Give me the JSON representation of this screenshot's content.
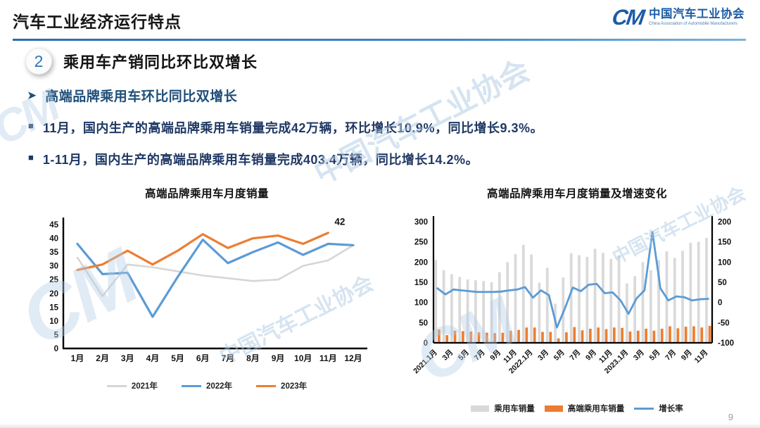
{
  "header": {
    "title": "汽车工业经济运行特点",
    "logo": {
      "mark": "CM",
      "org_cn": "中国汽车工业协会",
      "org_en": "China Association of Automobile Manufacturers"
    }
  },
  "section": {
    "number": "2",
    "title": "乘用车产销同比环比双增长"
  },
  "subtitle": "高端品牌乘用车环比同比双增长",
  "bullets": [
    "11月，国内生产的高端品牌乘用车销量完成42万辆，环比增长10.9%，同比增长9.3%。",
    "1-11月，国内生产的高端品牌乘用车销量完成403.4万辆，同比增长14.2%。"
  ],
  "watermark": {
    "text": "中国汽车工业协会",
    "mark": "CM"
  },
  "page_number": "9",
  "colors": {
    "accent_blue": "#2e75b6",
    "dark_navy": "#1f3864",
    "subtitle_blue": "#1f4e79",
    "line_gray": "#d6d6d6",
    "line_blue": "#5b9bd5",
    "line_orange": "#ed7d31",
    "bar_gray": "#d9d9d9"
  },
  "chart_data": [
    {
      "type": "line",
      "title": "高端品牌乘用车月度销量",
      "categories": [
        "1月",
        "2月",
        "3月",
        "4月",
        "5月",
        "6月",
        "7月",
        "8月",
        "9月",
        "10月",
        "11月",
        "12月"
      ],
      "series": [
        {
          "name": "2021年",
          "color": "#d6d6d6",
          "values": [
            33,
            19,
            30.5,
            29.5,
            28,
            26.5,
            25.5,
            24.5,
            25,
            30,
            32,
            37.5
          ]
        },
        {
          "name": "2022年",
          "color": "#5b9bd5",
          "values": [
            38,
            27,
            27.5,
            11.5,
            26,
            39.5,
            31,
            35,
            38.5,
            34,
            38,
            37.5
          ]
        },
        {
          "name": "2023年",
          "color": "#ed7d31",
          "values": [
            28.5,
            30.5,
            35.5,
            30.5,
            35.5,
            41.5,
            36.5,
            40,
            41,
            38,
            42,
            null
          ]
        }
      ],
      "ylim": [
        0,
        45
      ],
      "ytick_step": 5,
      "legend_position": "bottom",
      "grid": false,
      "annotation": {
        "text": "42",
        "series_index": 2,
        "point_index": 10
      }
    },
    {
      "type": "combo",
      "title": "高端品牌乘用车月度销量及增速变化",
      "categories": [
        "2021.1月",
        "2月",
        "3月",
        "4月",
        "5月",
        "6月",
        "7月",
        "8月",
        "9月",
        "10月",
        "11月",
        "12月",
        "2022.1月",
        "2月",
        "3月",
        "4月",
        "5月",
        "6月",
        "7月",
        "8月",
        "9月",
        "10月",
        "11月",
        "12月",
        "2023.1月",
        "2月",
        "3月",
        "4月",
        "5月",
        "6月",
        "7月",
        "8月",
        "9月",
        "10月",
        "11月"
      ],
      "tick_every": 2,
      "bar_series": [
        {
          "name": "乘用车销量",
          "color": "#d9d9d9",
          "axis": "left",
          "values": [
            205,
            180,
            170,
            163,
            157,
            155,
            153,
            150,
            175,
            200,
            220,
            243,
            219,
            149,
            186,
            97,
            162,
            222,
            217,
            213,
            233,
            223,
            208,
            217,
            147,
            165,
            200,
            180,
            205,
            227,
            210,
            228,
            248,
            250,
            260
          ]
        },
        {
          "name": "高端乘用车销量",
          "color": "#ed7d31",
          "axis": "left",
          "values": [
            33,
            19,
            30,
            29,
            28,
            26,
            25,
            24,
            25,
            30,
            32,
            38,
            38,
            27,
            27,
            11,
            26,
            39,
            31,
            35,
            38,
            34,
            38,
            37,
            28,
            30,
            35,
            30,
            35,
            41,
            36,
            40,
            41,
            38,
            42
          ]
        }
      ],
      "line_series": [
        {
          "name": "增长率",
          "color": "#5b9bd5",
          "axis": "right",
          "values": [
            35,
            20,
            32,
            30,
            28,
            26,
            26,
            26,
            27,
            30,
            32,
            38,
            12,
            30,
            18,
            -62,
            -15,
            37,
            28,
            44,
            46,
            23,
            25,
            5,
            -28,
            10,
            30,
            175,
            35,
            5,
            15,
            13,
            5,
            8,
            9
          ]
        }
      ],
      "left_ylim": [
        0,
        300
      ],
      "left_ytick_step": 50,
      "right_ylim": [
        -100,
        200
      ],
      "right_ytick_step": 50,
      "legend_position": "bottom",
      "grid": false
    }
  ]
}
